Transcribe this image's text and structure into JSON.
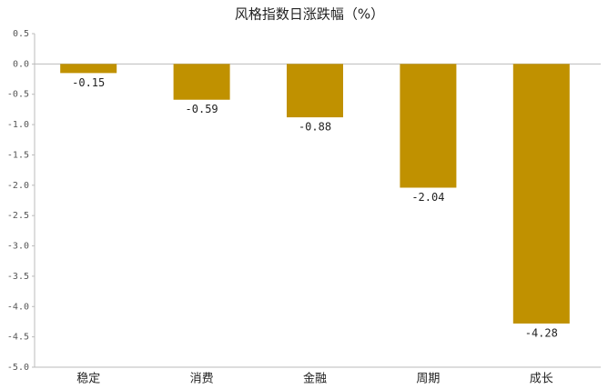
{
  "chart_data": {
    "type": "bar",
    "title": "风格指数日涨跌幅（%）",
    "categories": [
      "稳定",
      "消费",
      "金融",
      "周期",
      "成长"
    ],
    "values": [
      -0.15,
      -0.59,
      -0.88,
      -2.04,
      -4.28
    ],
    "color": "#c09100",
    "ylim": [
      -5.0,
      0.5
    ],
    "yticks": [
      0.5,
      {
        "value": 0,
        "label": "0.0"
      },
      -0.5,
      {
        "value": -1,
        "label": "-1.0"
      },
      -1.5,
      {
        "value": -2,
        "label": "-2.0"
      },
      -2.5,
      {
        "value": -3,
        "label": "-3.0"
      },
      -3.5,
      {
        "value": -4,
        "label": "-4.0"
      },
      -4.5,
      {
        "value": -5,
        "label": "-5.0"
      }
    ],
    "grid": false
  }
}
